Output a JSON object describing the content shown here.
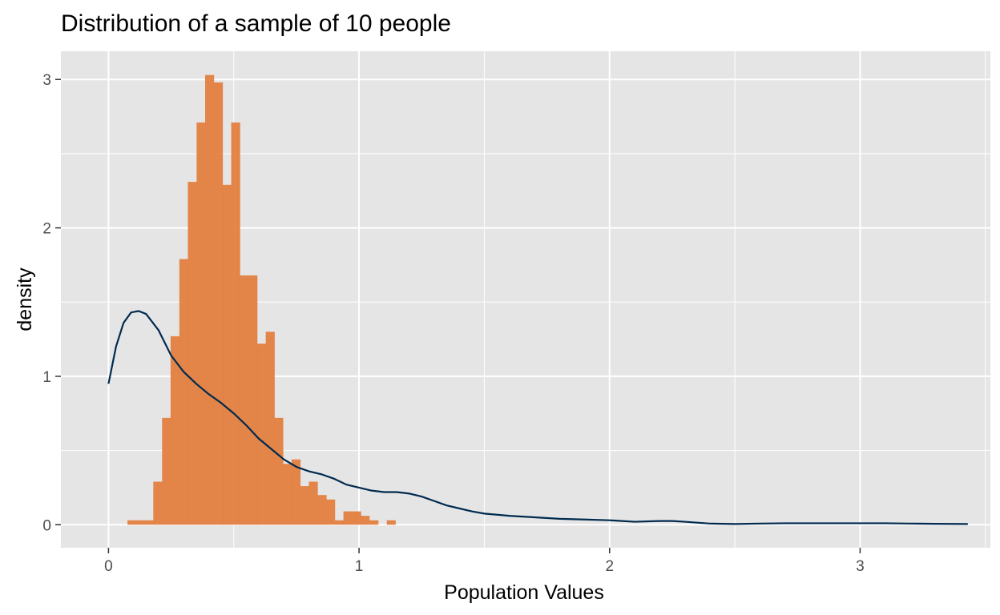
{
  "chart_data": {
    "type": "bar",
    "title": "Distribution of a sample of 10 people",
    "xlabel": "Population Values",
    "ylabel": "density",
    "xlim": [
      -0.19,
      3.52
    ],
    "ylim": [
      -0.155,
      3.19
    ],
    "grid": true,
    "x_ticks": [
      {
        "value": 0,
        "label": "0"
      },
      {
        "value": 1,
        "label": "1"
      },
      {
        "value": 2,
        "label": "2"
      },
      {
        "value": 3,
        "label": "3"
      }
    ],
    "y_ticks": [
      {
        "value": 0,
        "label": "0"
      },
      {
        "value": 1,
        "label": "1"
      },
      {
        "value": 2,
        "label": "2"
      },
      {
        "value": 3,
        "label": "3"
      }
    ],
    "series": [
      {
        "type": "histogram",
        "color": "#E3803F",
        "bin_width": 0.0345,
        "bins": [
          {
            "x": 0.093,
            "density": 0.03
          },
          {
            "x": 0.127,
            "density": 0.03
          },
          {
            "x": 0.162,
            "density": 0.03
          },
          {
            "x": 0.196,
            "density": 0.29
          },
          {
            "x": 0.231,
            "density": 0.72
          },
          {
            "x": 0.265,
            "density": 1.27
          },
          {
            "x": 0.3,
            "density": 1.79
          },
          {
            "x": 0.334,
            "density": 2.31
          },
          {
            "x": 0.369,
            "density": 2.71
          },
          {
            "x": 0.403,
            "density": 3.03
          },
          {
            "x": 0.438,
            "density": 2.98
          },
          {
            "x": 0.472,
            "density": 2.29
          },
          {
            "x": 0.507,
            "density": 2.71
          },
          {
            "x": 0.541,
            "density": 1.68
          },
          {
            "x": 0.576,
            "density": 1.68
          },
          {
            "x": 0.61,
            "density": 1.22
          },
          {
            "x": 0.645,
            "density": 1.3
          },
          {
            "x": 0.679,
            "density": 0.72
          },
          {
            "x": 0.714,
            "density": 0.41
          },
          {
            "x": 0.748,
            "density": 0.44
          },
          {
            "x": 0.783,
            "density": 0.26
          },
          {
            "x": 0.817,
            "density": 0.29
          },
          {
            "x": 0.852,
            "density": 0.2
          },
          {
            "x": 0.886,
            "density": 0.17
          },
          {
            "x": 0.921,
            "density": 0.03
          },
          {
            "x": 0.955,
            "density": 0.09
          },
          {
            "x": 0.99,
            "density": 0.09
          },
          {
            "x": 1.024,
            "density": 0.06
          },
          {
            "x": 1.059,
            "density": 0.03
          },
          {
            "x": 1.128,
            "density": 0.03
          }
        ]
      },
      {
        "type": "density_line",
        "color": "#002A4F",
        "points": [
          [
            0.0,
            0.95
          ],
          [
            0.03,
            1.2
          ],
          [
            0.06,
            1.36
          ],
          [
            0.09,
            1.43
          ],
          [
            0.12,
            1.44
          ],
          [
            0.15,
            1.42
          ],
          [
            0.2,
            1.31
          ],
          [
            0.25,
            1.14
          ],
          [
            0.3,
            1.03
          ],
          [
            0.35,
            0.95
          ],
          [
            0.4,
            0.88
          ],
          [
            0.45,
            0.82
          ],
          [
            0.5,
            0.75
          ],
          [
            0.55,
            0.67
          ],
          [
            0.6,
            0.58
          ],
          [
            0.65,
            0.51
          ],
          [
            0.7,
            0.44
          ],
          [
            0.75,
            0.39
          ],
          [
            0.8,
            0.36
          ],
          [
            0.85,
            0.34
          ],
          [
            0.9,
            0.31
          ],
          [
            0.95,
            0.27
          ],
          [
            1.0,
            0.25
          ],
          [
            1.05,
            0.23
          ],
          [
            1.1,
            0.22
          ],
          [
            1.15,
            0.22
          ],
          [
            1.2,
            0.21
          ],
          [
            1.25,
            0.19
          ],
          [
            1.3,
            0.16
          ],
          [
            1.35,
            0.13
          ],
          [
            1.4,
            0.11
          ],
          [
            1.45,
            0.09
          ],
          [
            1.5,
            0.075
          ],
          [
            1.6,
            0.06
          ],
          [
            1.7,
            0.05
          ],
          [
            1.8,
            0.04
          ],
          [
            1.9,
            0.035
          ],
          [
            2.0,
            0.03
          ],
          [
            2.05,
            0.025
          ],
          [
            2.1,
            0.02
          ],
          [
            2.2,
            0.025
          ],
          [
            2.25,
            0.025
          ],
          [
            2.3,
            0.02
          ],
          [
            2.4,
            0.008
          ],
          [
            2.5,
            0.005
          ],
          [
            2.6,
            0.008
          ],
          [
            2.7,
            0.01
          ],
          [
            2.8,
            0.01
          ],
          [
            2.9,
            0.01
          ],
          [
            3.0,
            0.01
          ],
          [
            3.1,
            0.01
          ],
          [
            3.2,
            0.008
          ],
          [
            3.3,
            0.006
          ],
          [
            3.43,
            0.005
          ]
        ]
      }
    ],
    "colors": {
      "panel_background": "#E5E5E5",
      "grid": "#FFFFFF",
      "axis_tick": "#333333"
    }
  }
}
